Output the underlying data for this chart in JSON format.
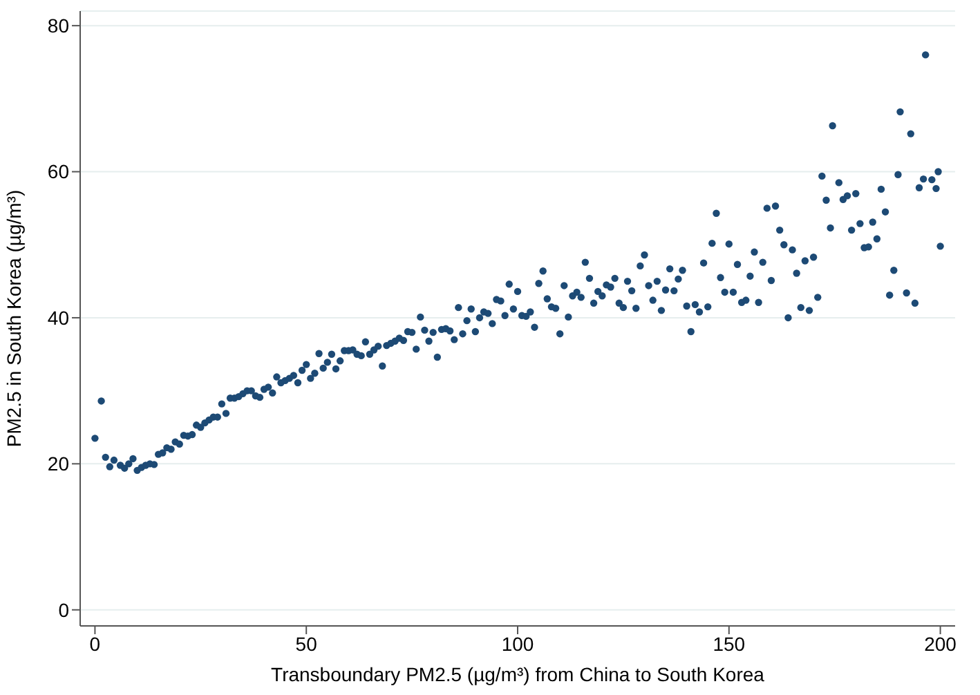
{
  "chart_data": {
    "type": "scatter",
    "xlabel": "Transboundary PM2.5 (µg/m³) from China to South Korea",
    "ylabel": "PM2.5 in South Korea (µg/m³)",
    "x": [
      0,
      1.5,
      2.5,
      3.5,
      4.5,
      6,
      7,
      8,
      9,
      10,
      11,
      12,
      13,
      14,
      15,
      16,
      17,
      18,
      19,
      20,
      21,
      22,
      23,
      24,
      25,
      26,
      27,
      28,
      29,
      30,
      31,
      32,
      33,
      34,
      35,
      36,
      37,
      38,
      39,
      40,
      41,
      42,
      43,
      44,
      45,
      46,
      47,
      48,
      49,
      50,
      51,
      52,
      53,
      54,
      55,
      56,
      57,
      58,
      59,
      60,
      61,
      62,
      63,
      64,
      65,
      66,
      67,
      68,
      69,
      70,
      71,
      72,
      73,
      74,
      75,
      76,
      77,
      78,
      79,
      80,
      81,
      82,
      83,
      84,
      85,
      86,
      87,
      88,
      89,
      90,
      91,
      92,
      93,
      94,
      95,
      96,
      97,
      98,
      99,
      100,
      101,
      102,
      103,
      104,
      105,
      106,
      107,
      108,
      109,
      110,
      111,
      112,
      113,
      114,
      115,
      116,
      117,
      118,
      119,
      120,
      121,
      122,
      123,
      124,
      125,
      126,
      127,
      128,
      129,
      130,
      131,
      132,
      133,
      134,
      135,
      136,
      137,
      138,
      139,
      140,
      141,
      142,
      143,
      144,
      145,
      146,
      147,
      148,
      149,
      150,
      151,
      152,
      153,
      154,
      155,
      156,
      157,
      158,
      159,
      160,
      161,
      162,
      163,
      164,
      165,
      166,
      167,
      168,
      169,
      170,
      171,
      172,
      173,
      174,
      174.5,
      176,
      177,
      178,
      179,
      180,
      181,
      182,
      183,
      184,
      185,
      186,
      187,
      188,
      189,
      190,
      190.5,
      192,
      193,
      194,
      195,
      196,
      196.5,
      198,
      199,
      199.5,
      200
    ],
    "series": [
      {
        "color": "#1d4a75",
        "values": [
          23.5,
          28.6,
          20.9,
          19.6,
          20.5,
          19.8,
          19.4,
          20.0,
          20.7,
          19.1,
          19.5,
          19.8,
          20.0,
          19.9,
          21.3,
          21.5,
          22.2,
          22.0,
          23.0,
          22.7,
          23.9,
          23.8,
          24.0,
          25.3,
          25.0,
          25.6,
          26.0,
          26.4,
          26.4,
          28.2,
          26.9,
          29.0,
          29.0,
          29.2,
          29.6,
          30.0,
          30.0,
          29.3,
          29.1,
          30.2,
          30.5,
          29.7,
          31.9,
          31.1,
          31.4,
          31.7,
          32.1,
          31.1,
          32.8,
          33.6,
          31.7,
          32.4,
          35.1,
          33.1,
          33.9,
          35.0,
          33.0,
          34.1,
          35.5,
          35.5,
          35.6,
          35.0,
          34.8,
          36.7,
          35.0,
          35.6,
          36.1,
          33.4,
          36.2,
          36.5,
          36.8,
          37.2,
          36.9,
          38.1,
          38.0,
          35.7,
          40.1,
          38.3,
          36.8,
          38.0,
          34.6,
          38.4,
          38.5,
          38.2,
          37.0,
          41.4,
          37.8,
          39.6,
          41.2,
          38.1,
          40.0,
          40.8,
          40.6,
          39.2,
          42.5,
          42.3,
          40.3,
          44.6,
          41.2,
          43.6,
          40.3,
          40.2,
          40.8,
          38.7,
          44.7,
          46.4,
          42.6,
          41.5,
          41.3,
          37.8,
          44.4,
          40.1,
          43.0,
          43.5,
          42.8,
          47.6,
          45.4,
          42.0,
          43.6,
          43.0,
          44.5,
          44.2,
          45.4,
          42.0,
          41.4,
          45.0,
          43.7,
          41.3,
          47.1,
          48.6,
          44.4,
          42.4,
          45.0,
          41.0,
          43.8,
          46.7,
          43.7,
          45.3,
          46.5,
          41.6,
          38.1,
          41.8,
          40.8,
          47.5,
          41.5,
          50.2,
          54.3,
          45.5,
          43.5,
          50.1,
          43.5,
          47.3,
          42.1,
          42.4,
          45.7,
          49.0,
          42.1,
          47.6,
          55.0,
          45.1,
          55.3,
          52.0,
          50.0,
          40.0,
          49.3,
          46.1,
          41.4,
          47.8,
          41.0,
          48.3,
          42.8,
          59.4,
          56.1,
          52.3,
          66.3,
          58.5,
          56.2,
          56.7,
          52.0,
          57.0,
          52.9,
          49.6,
          49.7,
          53.1,
          50.8,
          57.6,
          54.5,
          43.1,
          46.5,
          59.6,
          68.2,
          43.4,
          65.2,
          42.0,
          57.8,
          59.0,
          76.0,
          58.9,
          57.7,
          60.0,
          49.8
        ]
      }
    ],
    "xlim": [
      -3.5,
      203.5
    ],
    "ylim": [
      -2.2,
      82
    ],
    "xticks": [
      0,
      50,
      100,
      150,
      200
    ],
    "yticks": [
      0,
      20,
      40,
      60,
      80
    ],
    "grid": "y",
    "marker": "circle"
  }
}
